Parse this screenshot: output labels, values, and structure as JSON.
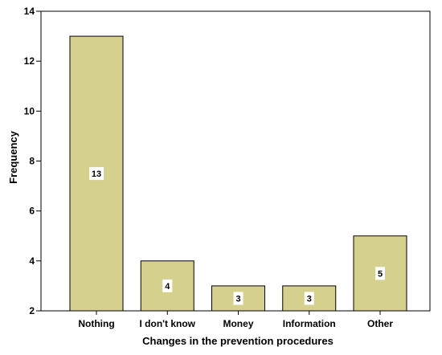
{
  "chart_data": {
    "type": "bar",
    "categories": [
      "Nothing",
      "I don't know",
      "Money",
      "Information",
      "Other"
    ],
    "values": [
      13,
      4,
      3,
      3,
      5
    ],
    "data_labels": [
      "13",
      "4",
      "3",
      "3",
      "5"
    ],
    "title": "",
    "xlabel": "Changes in the prevention procedures",
    "ylabel": "Frequency",
    "ylim": [
      2,
      14
    ],
    "yticks": [
      2,
      4,
      6,
      8,
      10,
      12,
      14
    ],
    "grid": false,
    "legend": "none",
    "colors": {
      "bar_fill": "#d6d08f",
      "bar_stroke": "#000000",
      "label_box": "#ffffff",
      "axis": "#000000"
    }
  }
}
